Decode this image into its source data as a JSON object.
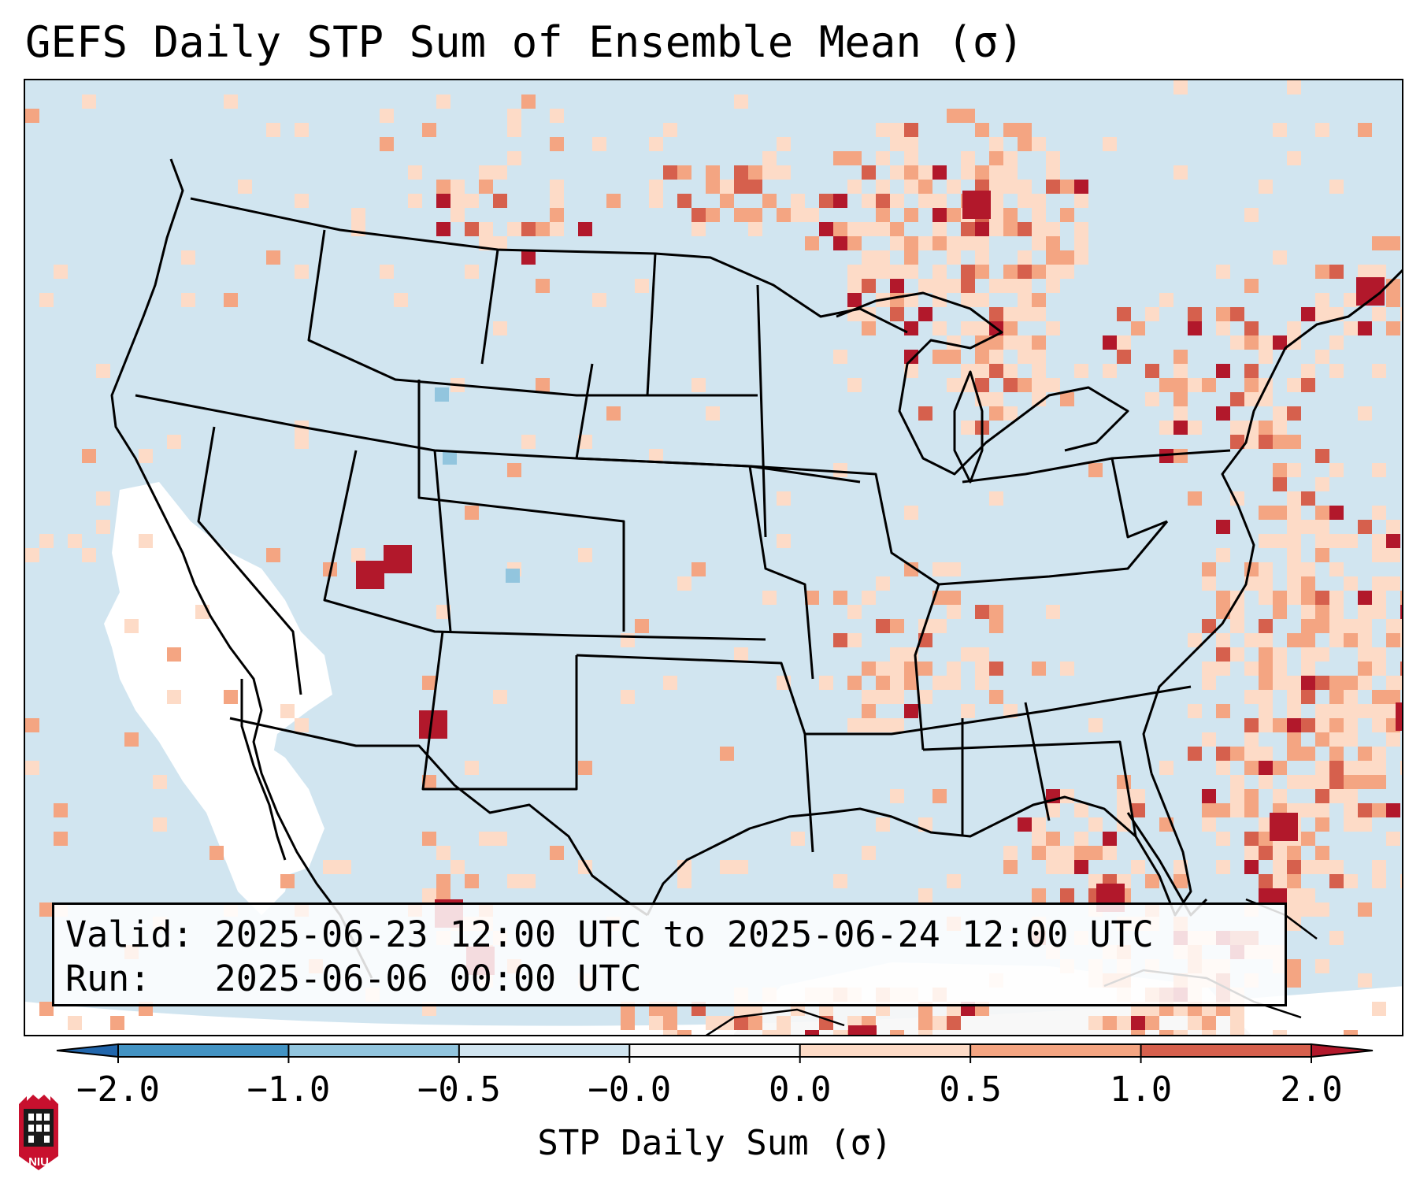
{
  "title": "GEFS Daily STP Sum of Ensemble Mean (σ)",
  "info": {
    "valid_label": "Valid:",
    "valid_value": "2025-06-23 12:00 UTC to 2025-06-24 12:00 UTC",
    "run_label": "Run:",
    "run_value": "2025-06-06 00:00 UTC"
  },
  "colorbar": {
    "label": "STP Daily Sum (σ)",
    "ticks": [
      "−2.0",
      "−1.0",
      "−0.5",
      "−0.0",
      "0.0",
      "0.5",
      "1.0",
      "2.0"
    ],
    "colors": {
      "under": "#2166ac",
      "bin1": "#4393c3",
      "bin2": "#92c5de",
      "bin3": "#d1e5f0",
      "bin4": "#f7f7f7",
      "bin5": "#fddbc7",
      "bin6": "#f4a582",
      "bin7": "#d6604d",
      "over": "#b2182b"
    }
  },
  "map": {
    "background_color": "#d1e5f0",
    "no_data_color": "#ffffff",
    "low_color": "#fddbc7",
    "mid_color": "#f4a582",
    "high_color": "#d6604d",
    "max_color": "#b2182b",
    "blue_color": "#92c5de"
  },
  "logo": {
    "text": "NIU",
    "color": "#c8102e"
  }
}
